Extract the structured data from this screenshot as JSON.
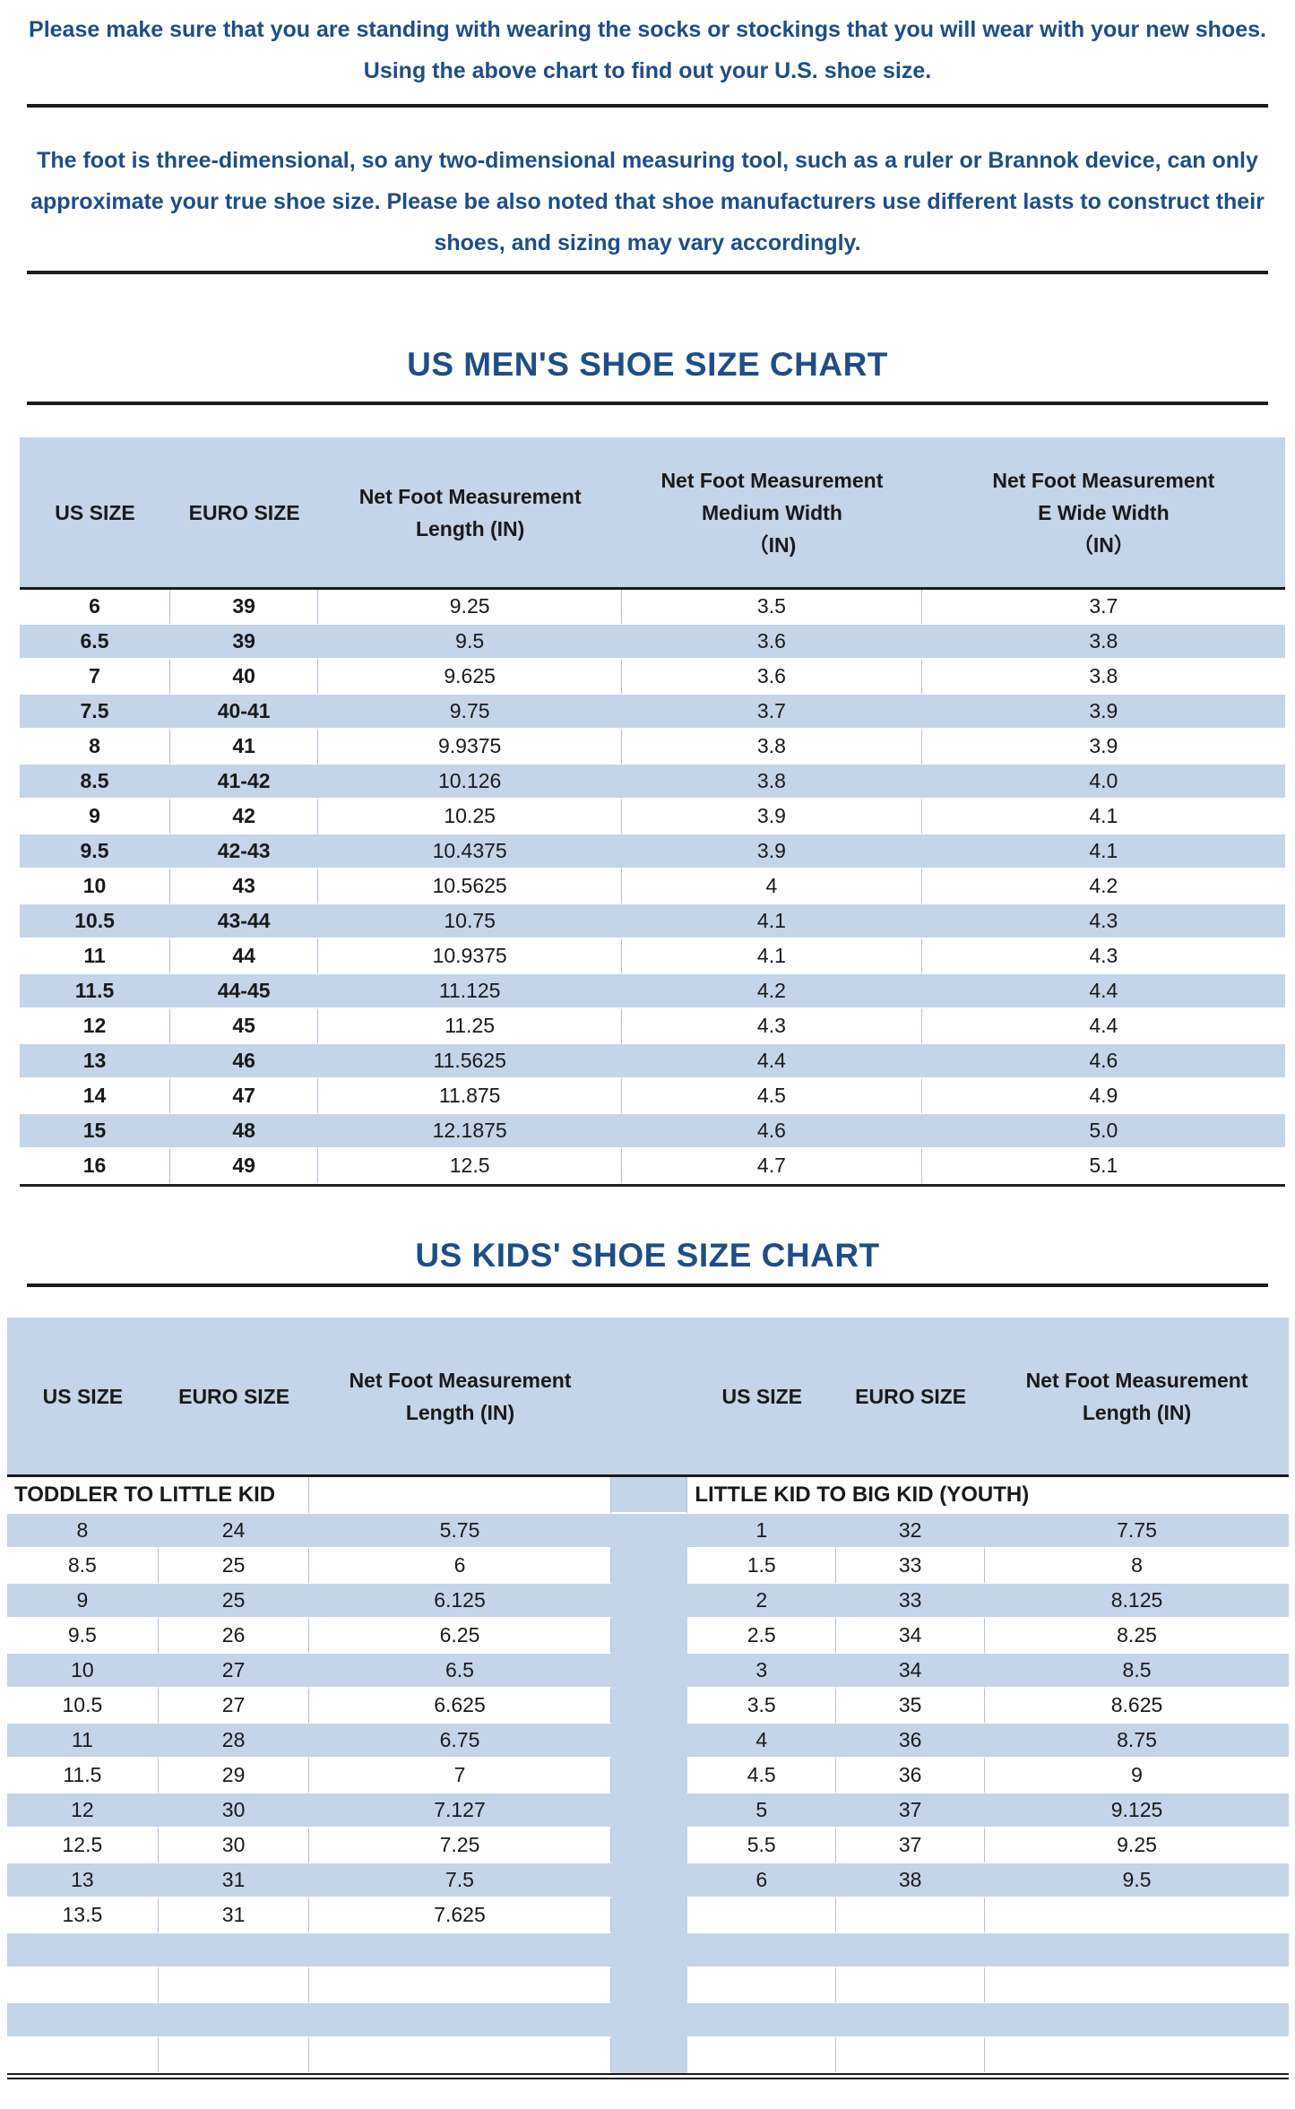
{
  "intro": {
    "text": "Please make sure that you are standing with wearing the socks or stockings that you will wear with your new shoes.\nUsing the above chart to find out your U.S. shoe size."
  },
  "note": {
    "text": "The foot is three-dimensional, so any two-dimensional measuring tool, such as a ruler or Brannok device, can only\napproximate your true shoe size. Please be also noted that shoe manufacturers use different lasts to construct their\nshoes, and sizing may vary accordingly."
  },
  "mens_chart": {
    "title": "US MEN'S SHOE SIZE CHART",
    "columns": [
      "US SIZE",
      "EURO SIZE",
      "Net Foot Measurement\nLength (IN)",
      "Net Foot Measurement\nMedium Width\n（IN)",
      "Net Foot Measurement\nE Wide Width\n（IN）"
    ],
    "rows": [
      [
        "6",
        "39",
        "9.25",
        "3.5",
        "3.7"
      ],
      [
        "6.5",
        "39",
        "9.5",
        "3.6",
        "3.8"
      ],
      [
        "7",
        "40",
        "9.625",
        "3.6",
        "3.8"
      ],
      [
        "7.5",
        "40-41",
        "9.75",
        "3.7",
        "3.9"
      ],
      [
        "8",
        "41",
        "9.9375",
        "3.8",
        "3.9"
      ],
      [
        "8.5",
        "41-42",
        "10.126",
        "3.8",
        "4.0"
      ],
      [
        "9",
        "42",
        "10.25",
        "3.9",
        "4.1"
      ],
      [
        "9.5",
        "42-43",
        "10.4375",
        "3.9",
        "4.1"
      ],
      [
        "10",
        "43",
        "10.5625",
        "4",
        "4.2"
      ],
      [
        "10.5",
        "43-44",
        "10.75",
        "4.1",
        "4.3"
      ],
      [
        "11",
        "44",
        "10.9375",
        "4.1",
        "4.3"
      ],
      [
        "11.5",
        "44-45",
        "11.125",
        "4.2",
        "4.4"
      ],
      [
        "12",
        "45",
        "11.25",
        "4.3",
        "4.4"
      ],
      [
        "13",
        "46",
        "11.5625",
        "4.4",
        "4.6"
      ],
      [
        "14",
        "47",
        "11.875",
        "4.5",
        "4.9"
      ],
      [
        "15",
        "48",
        "12.1875",
        "4.6",
        "5.0"
      ],
      [
        "16",
        "49",
        "12.5",
        "4.7",
        "5.1"
      ]
    ]
  },
  "kids_chart": {
    "title": "US KIDS' SHOE SIZE CHART",
    "header": {
      "us": "US SIZE",
      "euro": "EURO SIZE",
      "length": "Net Foot Measurement\nLength (IN)"
    },
    "left_section_label": "TODDLER TO LITTLE KID",
    "right_section_label": "LITTLE KID TO BIG KID (YOUTH)",
    "rows": [
      {
        "left": [
          "8",
          "24",
          "5.75"
        ],
        "right": [
          "1",
          "32",
          "7.75"
        ]
      },
      {
        "left": [
          "8.5",
          "25",
          "6"
        ],
        "right": [
          "1.5",
          "33",
          "8"
        ]
      },
      {
        "left": [
          "9",
          "25",
          "6.125"
        ],
        "right": [
          "2",
          "33",
          "8.125"
        ]
      },
      {
        "left": [
          "9.5",
          "26",
          "6.25"
        ],
        "right": [
          "2.5",
          "34",
          "8.25"
        ]
      },
      {
        "left": [
          "10",
          "27",
          "6.5"
        ],
        "right": [
          "3",
          "34",
          "8.5"
        ]
      },
      {
        "left": [
          "10.5",
          "27",
          "6.625"
        ],
        "right": [
          "3.5",
          "35",
          "8.625"
        ]
      },
      {
        "left": [
          "11",
          "28",
          "6.75"
        ],
        "right": [
          "4",
          "36",
          "8.75"
        ]
      },
      {
        "left": [
          "11.5",
          "29",
          "7"
        ],
        "right": [
          "4.5",
          "36",
          "9"
        ]
      },
      {
        "left": [
          "12",
          "30",
          "7.127"
        ],
        "right": [
          "5",
          "37",
          "9.125"
        ]
      },
      {
        "left": [
          "12.5",
          "30",
          "7.25"
        ],
        "right": [
          "5.5",
          "37",
          "9.25"
        ]
      },
      {
        "left": [
          "13",
          "31",
          "7.5"
        ],
        "right": [
          "6",
          "38",
          "9.5"
        ]
      },
      {
        "left": [
          "13.5",
          "31",
          "7.625"
        ],
        "right": [
          "",
          "",
          ""
        ]
      },
      {
        "left": [
          "",
          "",
          ""
        ],
        "right": [
          "",
          "",
          ""
        ]
      },
      {
        "left": [
          "",
          "",
          ""
        ],
        "right": [
          "",
          "",
          ""
        ]
      },
      {
        "left": [
          "",
          "",
          ""
        ],
        "right": [
          "",
          "",
          ""
        ]
      },
      {
        "left": [
          "",
          "",
          ""
        ],
        "right": [
          "",
          "",
          ""
        ]
      }
    ]
  },
  "colors": {
    "accent_navy": "#1f4e87",
    "band_blue": "#c4d4e9",
    "grid_line": "#aebfd4",
    "rule_dark": "#1c1c1c"
  }
}
